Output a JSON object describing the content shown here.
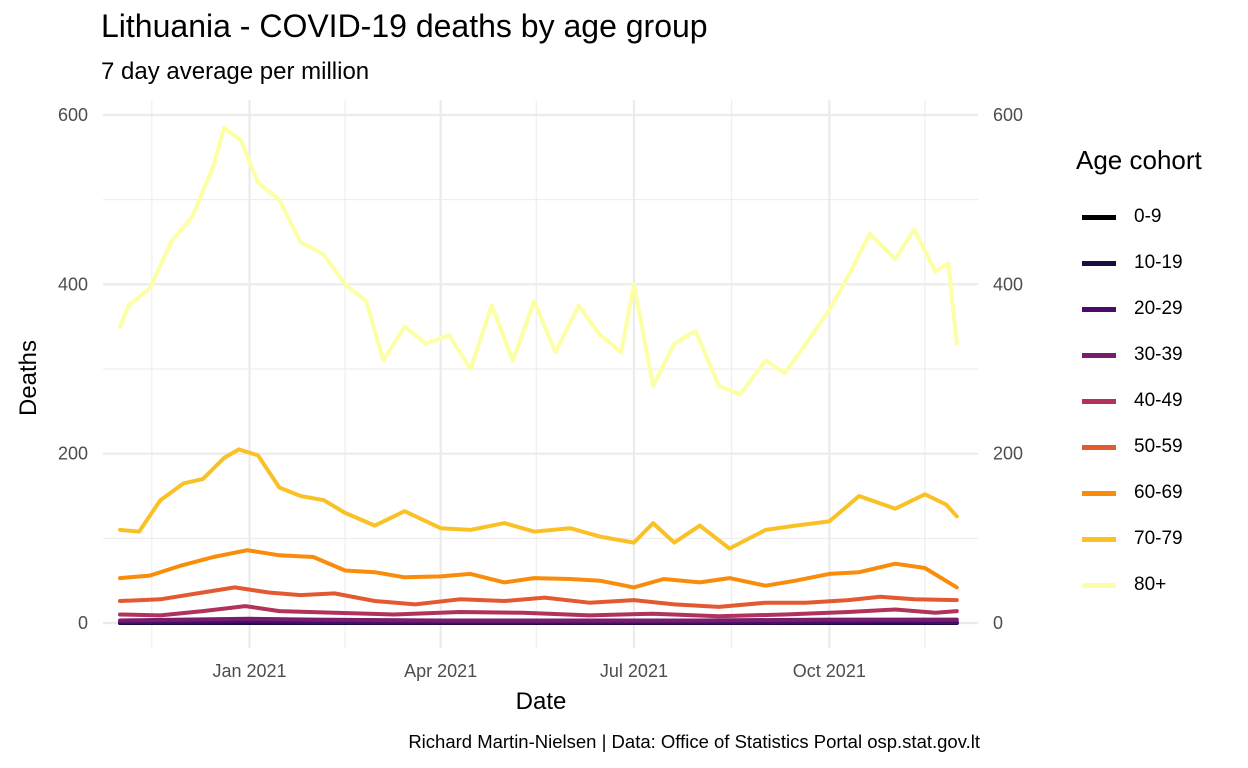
{
  "title": "Lithuania - COVID-19 deaths by age group",
  "subtitle": "7 day average per million",
  "caption": "Richard Martin-Nielsen | Data: Office of Statistics Portal osp.stat.gov.lt",
  "chart_data": {
    "type": "line",
    "xlabel": "Date",
    "ylabel": "Deaths",
    "x_ticks": [
      "Jan 2021",
      "Apr 2021",
      "Jul 2021",
      "Oct 2021"
    ],
    "y_ticks": [
      0,
      200,
      400,
      600
    ],
    "ylim": [
      -30,
      600
    ],
    "xlim": [
      "2020-10-24",
      "2021-12-10"
    ],
    "grid": true,
    "secondary_y_axis": true,
    "legend_title": "Age cohort",
    "legend_position": "right",
    "series": [
      {
        "name": "0-9",
        "color": "#000004",
        "x": [
          "2020-11-01",
          "2021-02-01",
          "2021-05-01",
          "2021-08-01",
          "2021-11-30"
        ],
        "y": [
          0,
          0,
          0,
          0,
          0
        ]
      },
      {
        "name": "10-19",
        "color": "#1b0c41",
        "x": [
          "2020-11-01",
          "2021-02-01",
          "2021-05-01",
          "2021-08-01",
          "2021-11-30"
        ],
        "y": [
          0,
          0,
          0,
          0,
          0
        ]
      },
      {
        "name": "20-29",
        "color": "#4a0c6b",
        "x": [
          "2020-11-01",
          "2021-01-01",
          "2021-03-01",
          "2021-05-01",
          "2021-07-01",
          "2021-09-01",
          "2021-11-01",
          "2021-11-30"
        ],
        "y": [
          1,
          2,
          1,
          1,
          1,
          1,
          2,
          1
        ]
      },
      {
        "name": "30-39",
        "color": "#781c6d",
        "x": [
          "2020-11-01",
          "2020-12-01",
          "2021-01-01",
          "2021-02-01",
          "2021-04-01",
          "2021-06-01",
          "2021-08-01",
          "2021-10-01",
          "2021-11-30"
        ],
        "y": [
          3,
          4,
          5,
          4,
          3,
          3,
          3,
          4,
          4
        ]
      },
      {
        "name": "40-49",
        "color": "#b1325a",
        "x": [
          "2020-11-01",
          "2020-11-20",
          "2020-12-10",
          "2020-12-30",
          "2021-01-15",
          "2021-02-10",
          "2021-03-10",
          "2021-04-10",
          "2021-05-10",
          "2021-06-10",
          "2021-07-10",
          "2021-08-10",
          "2021-09-10",
          "2021-10-10",
          "2021-11-01",
          "2021-11-20",
          "2021-11-30"
        ],
        "y": [
          10,
          9,
          14,
          20,
          14,
          12,
          10,
          13,
          12,
          9,
          11,
          8,
          10,
          13,
          16,
          12,
          14
        ]
      },
      {
        "name": "50-59",
        "color": "#e35932",
        "x": [
          "2020-11-01",
          "2020-11-20",
          "2020-12-10",
          "2020-12-25",
          "2021-01-10",
          "2021-01-25",
          "2021-02-10",
          "2021-03-01",
          "2021-03-20",
          "2021-04-10",
          "2021-05-01",
          "2021-05-20",
          "2021-06-10",
          "2021-07-01",
          "2021-07-20",
          "2021-08-10",
          "2021-09-01",
          "2021-09-20",
          "2021-10-10",
          "2021-10-25",
          "2021-11-10",
          "2021-11-30"
        ],
        "y": [
          26,
          28,
          36,
          42,
          36,
          33,
          35,
          26,
          22,
          28,
          26,
          30,
          24,
          27,
          22,
          19,
          24,
          24,
          27,
          31,
          28,
          27
        ]
      },
      {
        "name": "60-69",
        "color": "#f98c0a",
        "x": [
          "2020-11-01",
          "2020-11-15",
          "2020-11-30",
          "2020-12-15",
          "2020-12-31",
          "2021-01-15",
          "2021-01-31",
          "2021-02-15",
          "2021-03-01",
          "2021-03-15",
          "2021-04-01",
          "2021-04-15",
          "2021-05-01",
          "2021-05-15",
          "2021-06-01",
          "2021-06-15",
          "2021-07-01",
          "2021-07-15",
          "2021-08-01",
          "2021-08-15",
          "2021-09-01",
          "2021-09-15",
          "2021-10-01",
          "2021-10-15",
          "2021-11-01",
          "2021-11-15",
          "2021-11-30"
        ],
        "y": [
          53,
          56,
          68,
          78,
          86,
          80,
          78,
          62,
          60,
          54,
          55,
          58,
          48,
          53,
          52,
          50,
          42,
          52,
          48,
          53,
          44,
          50,
          58,
          60,
          70,
          65,
          42
        ]
      },
      {
        "name": "70-79",
        "color": "#fac127",
        "x": [
          "2020-11-01",
          "2020-11-10",
          "2020-11-20",
          "2020-12-01",
          "2020-12-10",
          "2020-12-20",
          "2020-12-27",
          "2021-01-05",
          "2021-01-15",
          "2021-01-25",
          "2021-02-05",
          "2021-02-15",
          "2021-03-01",
          "2021-03-15",
          "2021-04-01",
          "2021-04-15",
          "2021-05-01",
          "2021-05-15",
          "2021-06-01",
          "2021-06-15",
          "2021-07-01",
          "2021-07-10",
          "2021-07-20",
          "2021-08-01",
          "2021-08-15",
          "2021-09-01",
          "2021-09-15",
          "2021-10-01",
          "2021-10-15",
          "2021-11-01",
          "2021-11-15",
          "2021-11-25",
          "2021-11-30"
        ],
        "y": [
          110,
          108,
          145,
          165,
          170,
          195,
          205,
          198,
          160,
          150,
          145,
          130,
          115,
          132,
          112,
          110,
          118,
          108,
          112,
          102,
          95,
          118,
          95,
          115,
          88,
          110,
          115,
          120,
          150,
          135,
          152,
          140,
          126
        ]
      },
      {
        "name": "80+",
        "color": "#fcffa4",
        "x": [
          "2020-11-01",
          "2020-11-05",
          "2020-11-15",
          "2020-11-25",
          "2020-12-05",
          "2020-12-15",
          "2020-12-20",
          "2020-12-28",
          "2021-01-05",
          "2021-01-15",
          "2021-01-25",
          "2021-02-05",
          "2021-02-15",
          "2021-02-25",
          "2021-03-05",
          "2021-03-15",
          "2021-03-25",
          "2021-04-05",
          "2021-04-15",
          "2021-04-25",
          "2021-05-05",
          "2021-05-15",
          "2021-05-25",
          "2021-06-05",
          "2021-06-15",
          "2021-06-25",
          "2021-07-01",
          "2021-07-10",
          "2021-07-20",
          "2021-07-30",
          "2021-08-10",
          "2021-08-20",
          "2021-09-01",
          "2021-09-10",
          "2021-09-20",
          "2021-10-01",
          "2021-10-10",
          "2021-10-20",
          "2021-11-01",
          "2021-11-10",
          "2021-11-20",
          "2021-11-26",
          "2021-11-30"
        ],
        "y": [
          350,
          375,
          395,
          450,
          480,
          540,
          585,
          570,
          520,
          500,
          450,
          435,
          400,
          380,
          310,
          350,
          330,
          340,
          300,
          375,
          310,
          380,
          320,
          375,
          340,
          320,
          400,
          280,
          330,
          345,
          280,
          270,
          310,
          295,
          330,
          370,
          410,
          460,
          430,
          465,
          415,
          425,
          330
        ]
      }
    ]
  }
}
